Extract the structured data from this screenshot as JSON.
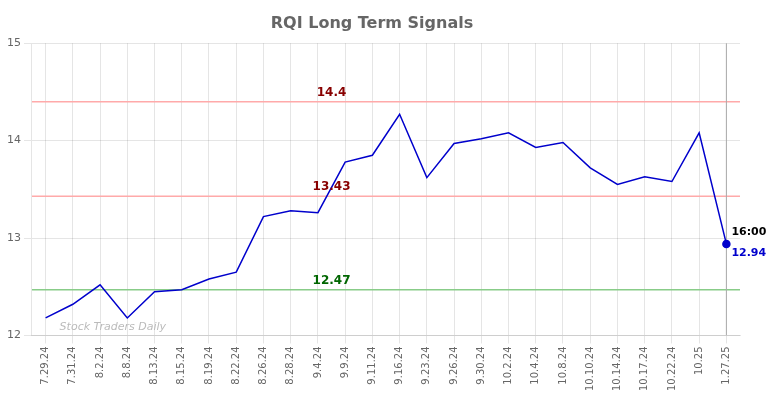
{
  "chart_data": {
    "type": "line",
    "title": "RQI Long Term Signals",
    "categories": [
      "7.29.24",
      "7.31.24",
      "8.2.24",
      "8.8.24",
      "8.13.24",
      "8.15.24",
      "8.19.24",
      "8.22.24",
      "8.26.24",
      "8.28.24",
      "9.4.24",
      "9.9.24",
      "9.11.24",
      "9.16.24",
      "9.23.24",
      "9.26.24",
      "9.30.24",
      "10.2.24",
      "10.4.24",
      "10.8.24",
      "10.10.24",
      "10.14.24",
      "10.17.24",
      "10.22.24",
      "10.25",
      "1.27.25"
    ],
    "values": [
      12.18,
      12.32,
      12.52,
      12.18,
      12.45,
      12.47,
      12.58,
      12.65,
      13.22,
      13.28,
      13.26,
      13.78,
      13.85,
      14.27,
      13.62,
      13.97,
      14.02,
      14.08,
      13.93,
      13.98,
      13.72,
      13.55,
      13.63,
      13.58,
      14.08,
      12.94
    ],
    "color": "#0000cc",
    "ylim": [
      12.0,
      15.0
    ],
    "yticks": [
      12,
      13,
      14,
      15
    ],
    "grid": true,
    "hlines": [
      {
        "value": 14.4,
        "label": "14.4",
        "color": "#ffaaaa",
        "label_color": "#880000"
      },
      {
        "value": 13.43,
        "label": "13.43",
        "color": "#ffaaaa",
        "label_color": "#880000"
      },
      {
        "value": 12.47,
        "label": "12.47",
        "color": "#88cc88",
        "label_color": "#006600"
      }
    ],
    "last_labels": [
      {
        "text": "16:00",
        "color": "#000000"
      },
      {
        "text": "12.94",
        "color": "#0000cc"
      }
    ],
    "watermark": {
      "text": "Stock Traders Daily",
      "color": "#bbbbbb"
    }
  }
}
